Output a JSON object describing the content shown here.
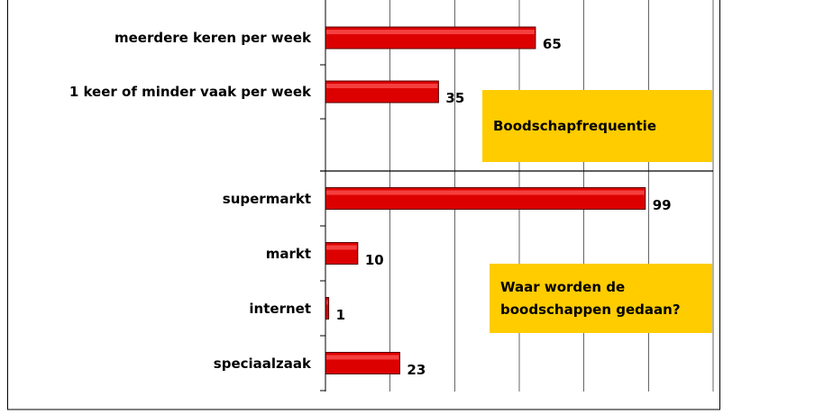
{
  "chart_data": [
    {
      "type": "hbar",
      "categories": [
        "meerdere keren per week",
        "1 keer of minder vaak per week"
      ],
      "values": [
        65,
        35
      ],
      "color": "#dd0000",
      "xlim": [
        0,
        120
      ],
      "xticks": [
        0,
        20,
        40,
        60,
        80,
        100,
        120
      ],
      "grid": true,
      "annotation": "Boodschapfrequentie"
    },
    {
      "type": "hbar",
      "categories": [
        "supermarkt",
        "markt",
        "internet",
        "speciaalzaak"
      ],
      "values": [
        99,
        10,
        1,
        23
      ],
      "color": "#dd0000",
      "xlim": [
        0,
        120
      ],
      "xticks": [
        0,
        20,
        40,
        60,
        80,
        100,
        120
      ],
      "grid": true,
      "annotation": "Waar worden de boodschappen gedaan?"
    }
  ]
}
